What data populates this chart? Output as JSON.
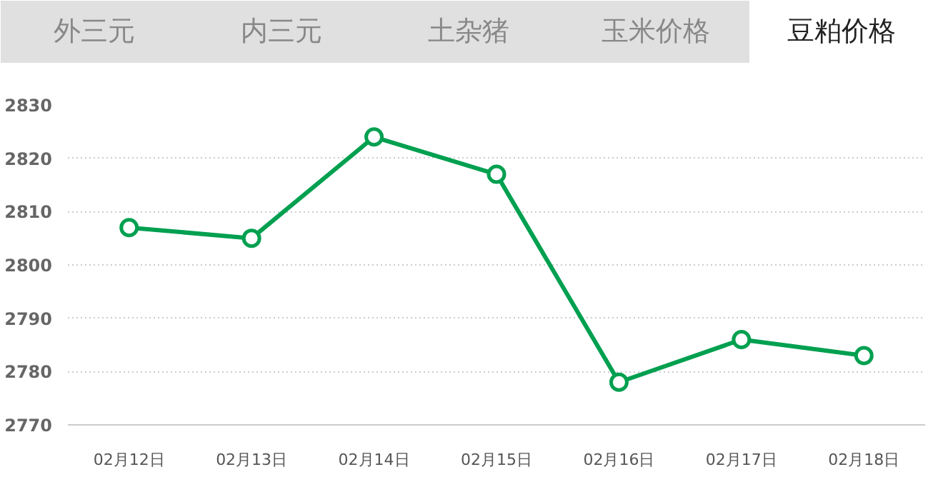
{
  "chart_data": {
    "type": "line",
    "title": "豆粕价格",
    "annotations": [
      "外三元",
      "内三元",
      "土杂猪",
      "玉米价格"
    ],
    "categories": [
      "02月12日",
      "02月13日",
      "02月14日",
      "02月15日",
      "02月16日",
      "02月17日",
      "02月18日"
    ],
    "series": [
      {
        "color": "#00a050",
        "values": [
          2807,
          2805,
          2824,
          2817,
          2778,
          2786,
          2783
        ]
      }
    ],
    "ylim": [
      2770,
      2830
    ],
    "yticks": [
      2770,
      2780,
      2790,
      2800,
      2810,
      2820,
      2830
    ],
    "grid": "y",
    "marker": "circle",
    "line_style": "solid"
  }
}
